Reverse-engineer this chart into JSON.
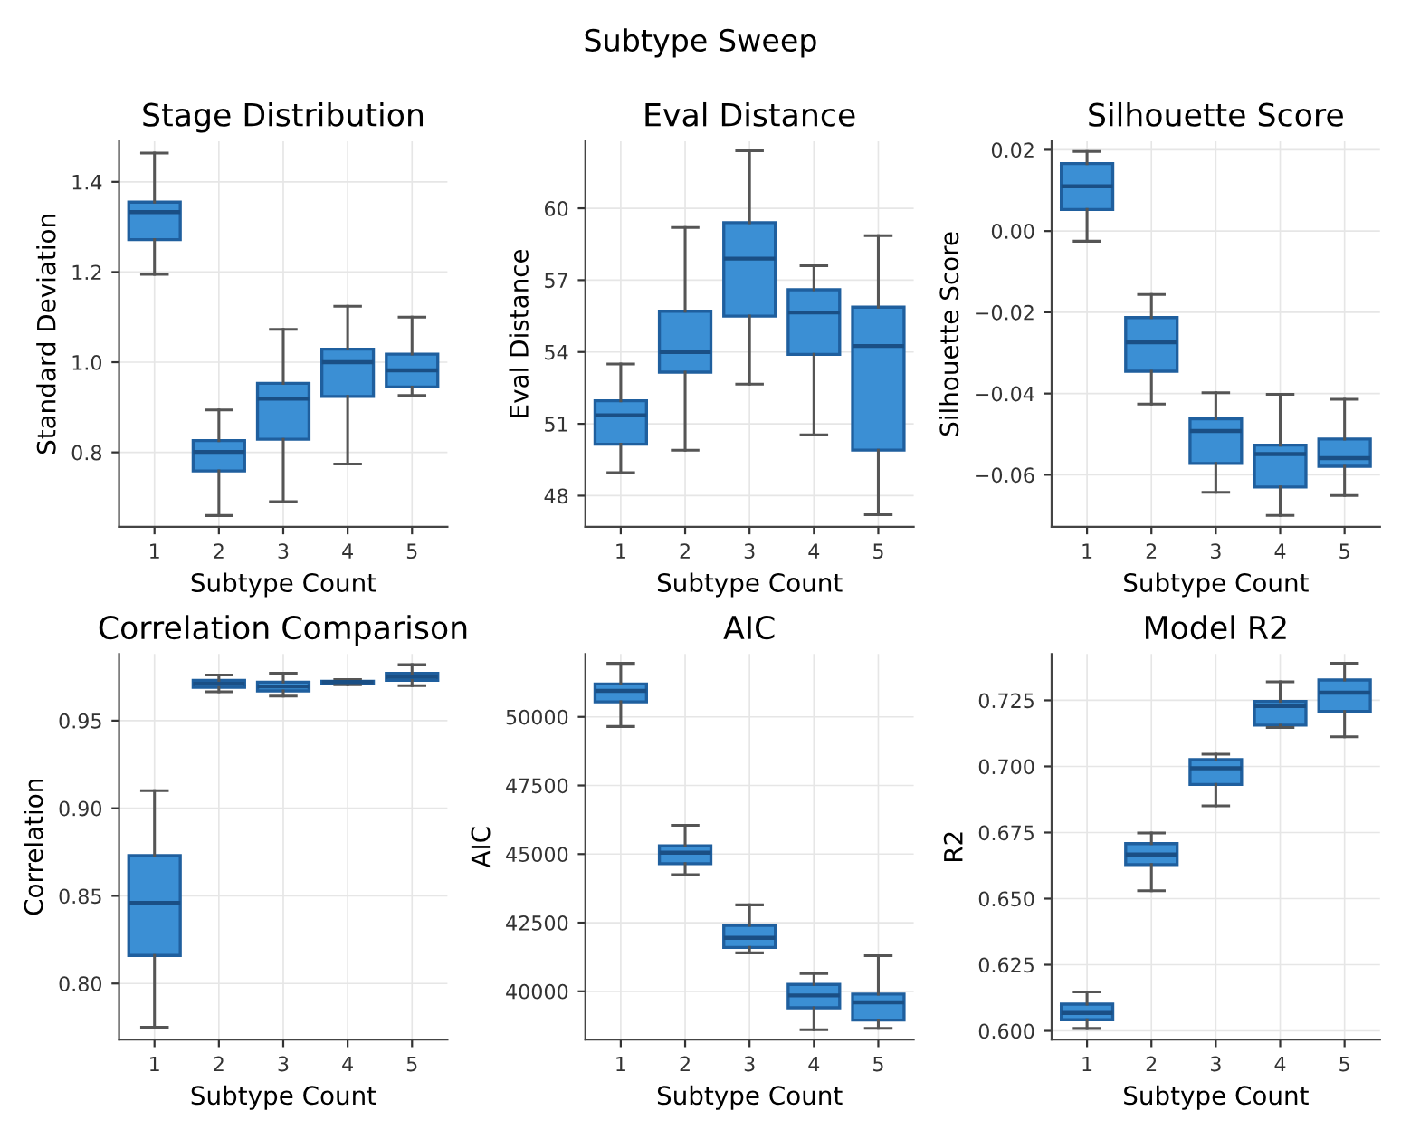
{
  "chart_data": [
    {
      "type": "box",
      "title": "Stage Distribution",
      "xlabel": "Subtype Count",
      "ylabel": "Standard Deviation",
      "annotations": [
        "Subtype Sweep"
      ],
      "categories": [
        "1",
        "2",
        "3",
        "4",
        "5"
      ],
      "color": "#3b8fd4",
      "ylim": [
        0.635,
        1.49
      ],
      "yticks": [
        {
          "value": 0.8,
          "label": "0.8"
        },
        {
          "value": 1.0,
          "label": "1.0"
        },
        {
          "value": 1.2,
          "label": "1.2"
        },
        {
          "value": 1.4,
          "label": "1.4"
        }
      ],
      "grid": true,
      "boxes": [
        {
          "low": 1.195,
          "q1": 1.272,
          "median": 1.333,
          "q3": 1.355,
          "high": 1.464
        },
        {
          "low": 0.66,
          "q1": 0.759,
          "median": 0.801,
          "q3": 0.826,
          "high": 0.894
        },
        {
          "low": 0.691,
          "q1": 0.829,
          "median": 0.919,
          "q3": 0.953,
          "high": 1.073
        },
        {
          "low": 0.774,
          "q1": 0.924,
          "median": 1.0,
          "q3": 1.029,
          "high": 1.124
        },
        {
          "low": 0.926,
          "q1": 0.945,
          "median": 0.982,
          "q3": 1.018,
          "high": 1.1
        }
      ]
    },
    {
      "type": "box",
      "title": "Eval Distance",
      "xlabel": "Subtype Count",
      "ylabel": "Eval Distance",
      "categories": [
        "1",
        "2",
        "3",
        "4",
        "5"
      ],
      "color": "#3b8fd4",
      "ylim": [
        46.7,
        62.8
      ],
      "yticks": [
        48,
        51,
        54,
        57,
        60
      ],
      "grid": true,
      "boxes": [
        {
          "low": 48.96,
          "q1": 50.15,
          "median": 51.35,
          "q3": 51.96,
          "high": 53.5
        },
        {
          "low": 49.9,
          "q1": 53.16,
          "median": 54.0,
          "q3": 55.7,
          "high": 59.2
        },
        {
          "low": 52.66,
          "q1": 55.5,
          "median": 57.9,
          "q3": 59.4,
          "high": 62.4
        },
        {
          "low": 50.54,
          "q1": 53.9,
          "median": 55.65,
          "q3": 56.6,
          "high": 57.6
        },
        {
          "low": 47.2,
          "q1": 49.9,
          "median": 54.25,
          "q3": 55.87,
          "high": 58.86
        }
      ]
    },
    {
      "type": "box",
      "title": "Silhouette Score",
      "xlabel": "Subtype Count",
      "ylabel": "Silhouette Score",
      "categories": [
        "1",
        "2",
        "3",
        "4",
        "5"
      ],
      "color": "#3b8fd4",
      "ylim": [
        -0.0728,
        0.0221
      ],
      "yticks": [
        {
          "value": -0.06,
          "label": "−0.06"
        },
        {
          "value": -0.04,
          "label": "−0.04"
        },
        {
          "value": -0.02,
          "label": "−0.02"
        },
        {
          "value": 0.0,
          "label": "0.00"
        },
        {
          "value": 0.02,
          "label": "0.02"
        }
      ],
      "grid": true,
      "boxes": [
        {
          "low": -0.0025,
          "q1": 0.0053,
          "median": 0.011,
          "q3": 0.0166,
          "high": 0.0196
        },
        {
          "low": -0.0426,
          "q1": -0.0345,
          "median": -0.0274,
          "q3": -0.0213,
          "high": -0.0156
        },
        {
          "low": -0.0643,
          "q1": -0.0572,
          "median": -0.0492,
          "q3": -0.0462,
          "high": -0.0398
        },
        {
          "low": -0.07,
          "q1": -0.063,
          "median": -0.0549,
          "q3": -0.0527,
          "high": -0.0402
        },
        {
          "low": -0.0651,
          "q1": -0.0579,
          "median": -0.0559,
          "q3": -0.0512,
          "high": -0.0414
        }
      ]
    },
    {
      "type": "box",
      "title": "Correlation Comparison",
      "xlabel": "Subtype Count",
      "ylabel": "Correlation",
      "categories": [
        "1",
        "2",
        "3",
        "4",
        "5"
      ],
      "color": "#3b8fd4",
      "ylim": [
        0.768,
        0.988
      ],
      "yticks": [
        {
          "value": 0.8,
          "label": "0.80"
        },
        {
          "value": 0.85,
          "label": "0.85"
        },
        {
          "value": 0.9,
          "label": "0.90"
        },
        {
          "value": 0.95,
          "label": "0.95"
        }
      ],
      "grid": true,
      "boxes": [
        {
          "low": 0.775,
          "q1": 0.816,
          "median": 0.846,
          "q3": 0.873,
          "high": 0.91
        },
        {
          "low": 0.9665,
          "q1": 0.969,
          "median": 0.971,
          "q3": 0.973,
          "high": 0.976
        },
        {
          "low": 0.964,
          "q1": 0.967,
          "median": 0.9695,
          "q3": 0.972,
          "high": 0.977
        },
        {
          "low": 0.9705,
          "q1": 0.971,
          "median": 0.972,
          "q3": 0.9725,
          "high": 0.9735
        },
        {
          "low": 0.97,
          "q1": 0.973,
          "median": 0.975,
          "q3": 0.977,
          "high": 0.982
        }
      ]
    },
    {
      "type": "box",
      "title": "AIC",
      "xlabel": "Subtype Count",
      "ylabel": "AIC",
      "categories": [
        "1",
        "2",
        "3",
        "4",
        "5"
      ],
      "color": "#3b8fd4",
      "ylim": [
        38240,
        52290
      ],
      "yticks": [
        40000,
        42500,
        45000,
        47500,
        50000
      ],
      "grid": true,
      "boxes": [
        {
          "low": 49650,
          "q1": 50550,
          "median": 50950,
          "q3": 51200,
          "high": 51950
        },
        {
          "low": 44250,
          "q1": 44650,
          "median": 45050,
          "q3": 45300,
          "high": 46050
        },
        {
          "low": 41400,
          "q1": 41600,
          "median": 41950,
          "q3": 42400,
          "high": 43150
        },
        {
          "low": 38600,
          "q1": 39400,
          "median": 39850,
          "q3": 40250,
          "high": 40650
        },
        {
          "low": 38650,
          "q1": 38950,
          "median": 39600,
          "q3": 39900,
          "high": 41300
        }
      ]
    },
    {
      "type": "box",
      "title": "Model R2",
      "xlabel": "Subtype Count",
      "ylabel": "R2",
      "categories": [
        "1",
        "2",
        "3",
        "4",
        "5"
      ],
      "color": "#3b8fd4",
      "ylim": [
        0.5967,
        0.7425
      ],
      "yticks": [
        {
          "value": 0.6,
          "label": "0.600"
        },
        {
          "value": 0.625,
          "label": "0.625"
        },
        {
          "value": 0.65,
          "label": "0.650"
        },
        {
          "value": 0.675,
          "label": "0.675"
        },
        {
          "value": 0.7,
          "label": "0.700"
        },
        {
          "value": 0.725,
          "label": "0.725"
        }
      ],
      "grid": true,
      "boxes": [
        {
          "low": 0.6009,
          "q1": 0.6042,
          "median": 0.6068,
          "q3": 0.6101,
          "high": 0.6147
        },
        {
          "low": 0.653,
          "q1": 0.6629,
          "median": 0.6667,
          "q3": 0.6708,
          "high": 0.6748
        },
        {
          "low": 0.6851,
          "q1": 0.6932,
          "median": 0.6993,
          "q3": 0.7026,
          "high": 0.7046
        },
        {
          "low": 0.7147,
          "q1": 0.7156,
          "median": 0.7228,
          "q3": 0.7246,
          "high": 0.732
        },
        {
          "low": 0.7112,
          "q1": 0.7208,
          "median": 0.7279,
          "q3": 0.7327,
          "high": 0.739
        }
      ]
    }
  ]
}
